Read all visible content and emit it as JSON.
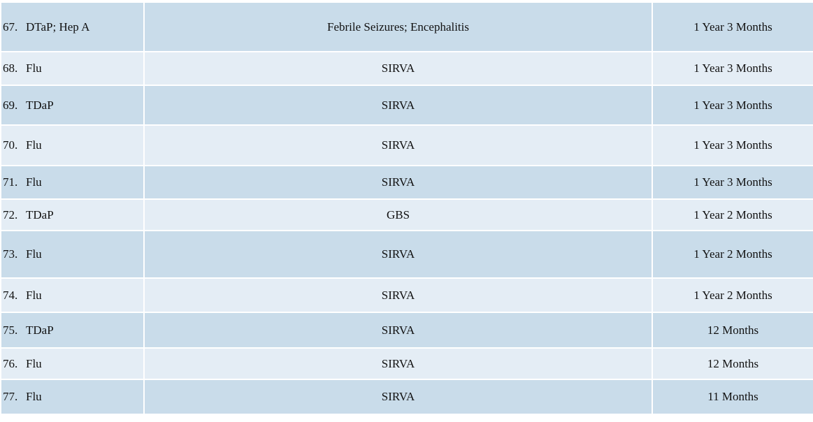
{
  "rows": [
    {
      "num": "67.",
      "vaccine": "DTaP; Hep A",
      "injury": "Febrile Seizures; Encephalitis",
      "time": "1 Year 3 Months"
    },
    {
      "num": "68.",
      "vaccine": "Flu",
      "injury": "SIRVA",
      "time": "1 Year 3 Months"
    },
    {
      "num": "69.",
      "vaccine": "TDaP",
      "injury": "SIRVA",
      "time": "1 Year 3 Months"
    },
    {
      "num": "70.",
      "vaccine": "Flu",
      "injury": "SIRVA",
      "time": "1 Year 3 Months"
    },
    {
      "num": "71.",
      "vaccine": "Flu",
      "injury": "SIRVA",
      "time": "1 Year 3 Months"
    },
    {
      "num": "72.",
      "vaccine": "TDaP",
      "injury": "GBS",
      "time": "1 Year 2 Months"
    },
    {
      "num": "73.",
      "vaccine": "Flu",
      "injury": "SIRVA",
      "time": "1 Year 2 Months"
    },
    {
      "num": "74.",
      "vaccine": "Flu",
      "injury": "SIRVA",
      "time": "1 Year 2 Months"
    },
    {
      "num": "75.",
      "vaccine": "TDaP",
      "injury": "SIRVA",
      "time": "12 Months"
    },
    {
      "num": "76.",
      "vaccine": "Flu",
      "injury": "SIRVA",
      "time": "12 Months"
    },
    {
      "num": "77.",
      "vaccine": "Flu",
      "injury": "SIRVA",
      "time": "11 Months"
    }
  ],
  "colors": {
    "row_dark": "#c9dcea",
    "row_light": "#e4edf5",
    "text": "#111111"
  }
}
